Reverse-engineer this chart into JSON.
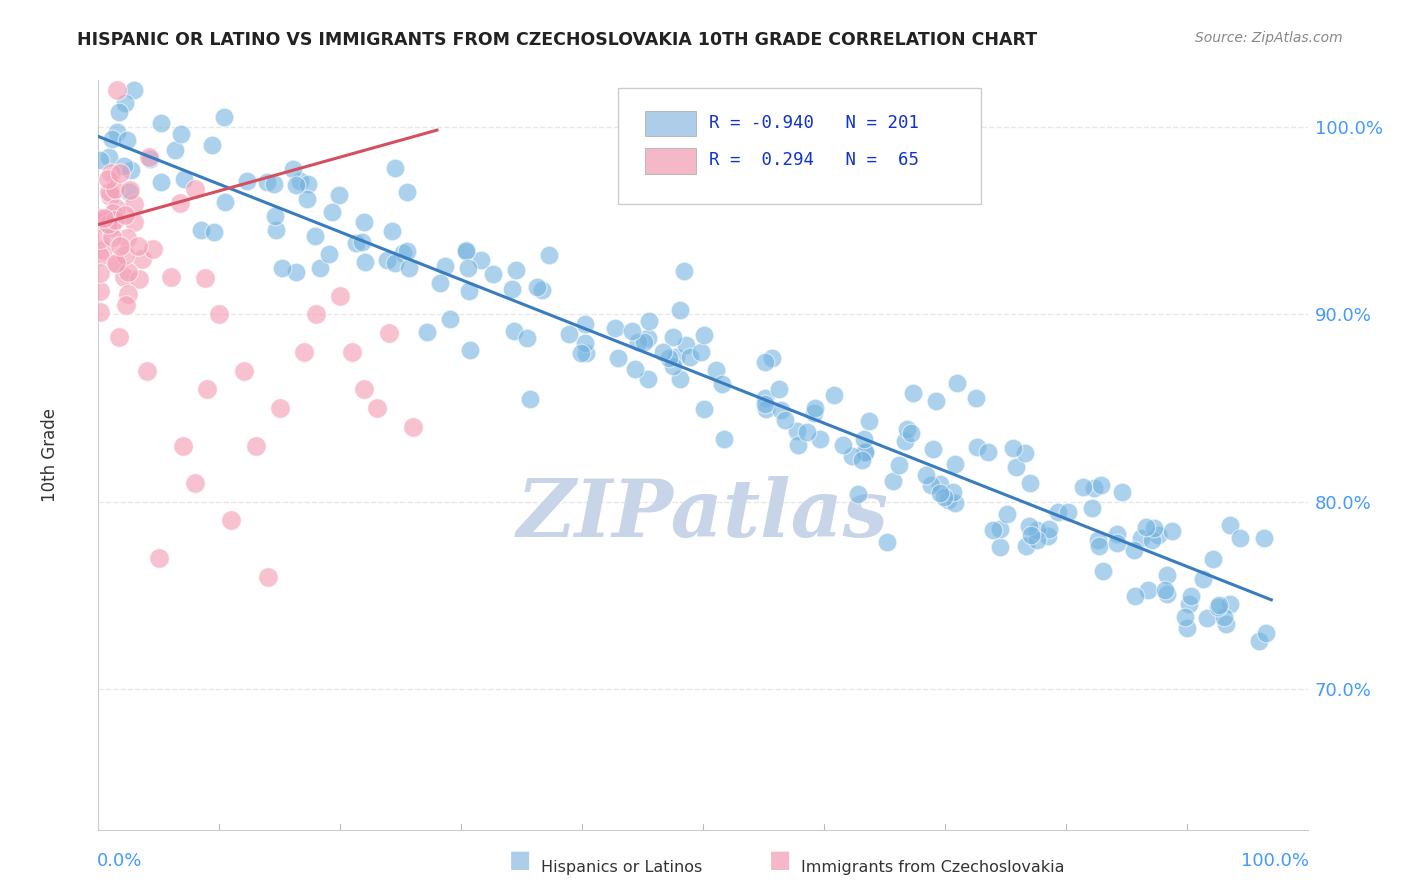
{
  "title": "HISPANIC OR LATINO VS IMMIGRANTS FROM CZECHOSLOVAKIA 10TH GRADE CORRELATION CHART",
  "source_text": "Source: ZipAtlas.com",
  "ylabel": "10th Grade",
  "ytick_labels": [
    "70.0%",
    "80.0%",
    "90.0%",
    "100.0%"
  ],
  "ytick_values": [
    0.7,
    0.8,
    0.9,
    1.0
  ],
  "legend_entries": [
    {
      "label": "Hispanics or Latinos",
      "R": "-0.940",
      "N": "201",
      "color": "#aecde8"
    },
    {
      "label": "Immigrants from Czechoslovakia",
      "R": "0.294",
      "N": "65",
      "color": "#f4b8c8"
    }
  ],
  "blue_scatter_color": "#74b3e0",
  "pink_scatter_color": "#f4a0b8",
  "blue_line_color": "#3a7cc0",
  "pink_line_color": "#d45060",
  "watermark": "ZIPatlas",
  "watermark_color": "#c8d4e8",
  "background_color": "#ffffff",
  "grid_color": "#e8e8e8",
  "N_blue": 201,
  "N_pink": 65,
  "xmin": 0.0,
  "xmax": 1.0,
  "ymin": 0.625,
  "ymax": 1.025
}
